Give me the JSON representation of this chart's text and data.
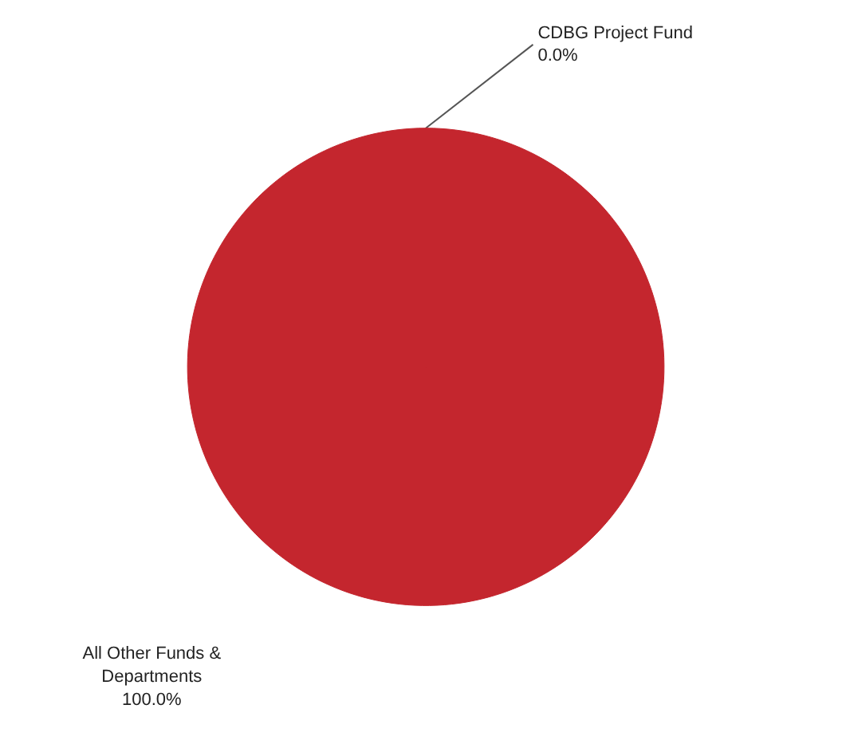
{
  "chart_data": {
    "type": "pie",
    "categories": [
      "CDBG Project Fund",
      "All Other Funds & Departments"
    ],
    "values": [
      0,
      100
    ],
    "value_labels": [
      "0.0%",
      "100.0%"
    ],
    "colors": [
      "#1f4e79",
      "#c4262e"
    ]
  }
}
